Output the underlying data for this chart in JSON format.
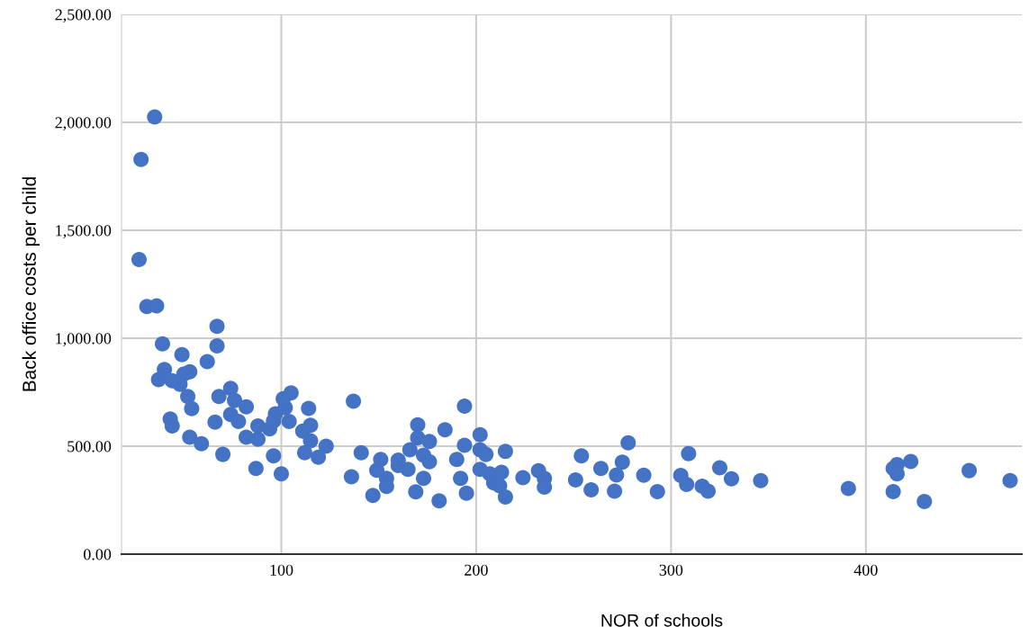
{
  "chart_data": {
    "type": "scatter",
    "xlabel": "NOR of schools",
    "ylabel": "Back office costs per child",
    "x": [
      35,
      28,
      27,
      31,
      36,
      67,
      39,
      67,
      49,
      62,
      40,
      37,
      53,
      50,
      44,
      48,
      74,
      68,
      52,
      76,
      82,
      54,
      74,
      78,
      66,
      43,
      44,
      53,
      59,
      70,
      87,
      82,
      88,
      88,
      94,
      96,
      100,
      97,
      102,
      105,
      101,
      104,
      114,
      115,
      111,
      112,
      119,
      123,
      115,
      137,
      136,
      141,
      151,
      149,
      154,
      154,
      147,
      160,
      160,
      165,
      170,
      166,
      170,
      176,
      173,
      176,
      173,
      169,
      184,
      181,
      194,
      194,
      190,
      192,
      195,
      202,
      202,
      205,
      202,
      207,
      213,
      215,
      209,
      212,
      215,
      224,
      232,
      235,
      235,
      251,
      254,
      259,
      264,
      272,
      275,
      278,
      271,
      286,
      293,
      309,
      305,
      308,
      316,
      319,
      325,
      331,
      346,
      391,
      414,
      416,
      416,
      423,
      414,
      430,
      453,
      474,
      96
    ],
    "values": [
      2025,
      1828,
      1365,
      1147,
      1150,
      1055,
      974,
      965,
      924,
      892,
      855,
      808,
      845,
      834,
      803,
      786,
      768,
      730,
      730,
      712,
      682,
      674,
      647,
      615,
      611,
      626,
      594,
      542,
      511,
      462,
      397,
      542,
      594,
      532,
      580,
      455,
      372,
      650,
      678,
      747,
      720,
      615,
      675,
      597,
      570,
      470,
      449,
      500,
      525,
      708,
      358,
      470,
      439,
      389,
      351,
      314,
      272,
      435,
      410,
      393,
      599,
      483,
      539,
      522,
      458,
      428,
      351,
      289,
      576,
      247,
      685,
      504,
      439,
      351,
      282,
      553,
      483,
      462,
      393,
      372,
      379,
      476,
      330,
      317,
      265,
      354,
      386,
      351,
      310,
      344,
      455,
      298,
      397,
      367,
      426,
      516,
      292,
      366,
      290,
      466,
      365,
      323,
      315,
      292,
      400,
      349,
      341,
      304,
      397,
      415,
      372,
      429,
      290,
      244,
      387,
      341,
      617
    ],
    "color": "#4472c4",
    "marker": "circle",
    "grid": true,
    "legend": false,
    "xlim": [
      18,
      480
    ],
    "xticks": [
      100,
      200,
      300,
      400
    ],
    "ylim": [
      0,
      2500
    ],
    "yticks": [
      {
        "value": 0,
        "label": "0.00"
      },
      {
        "value": 500,
        "label": "500.00"
      },
      {
        "value": 1000,
        "label": "1,000.00"
      },
      {
        "value": 1500,
        "label": "1,500.00"
      },
      {
        "value": 2000,
        "label": "2,000.00"
      },
      {
        "value": 2500,
        "label": "2,500.00"
      }
    ]
  }
}
